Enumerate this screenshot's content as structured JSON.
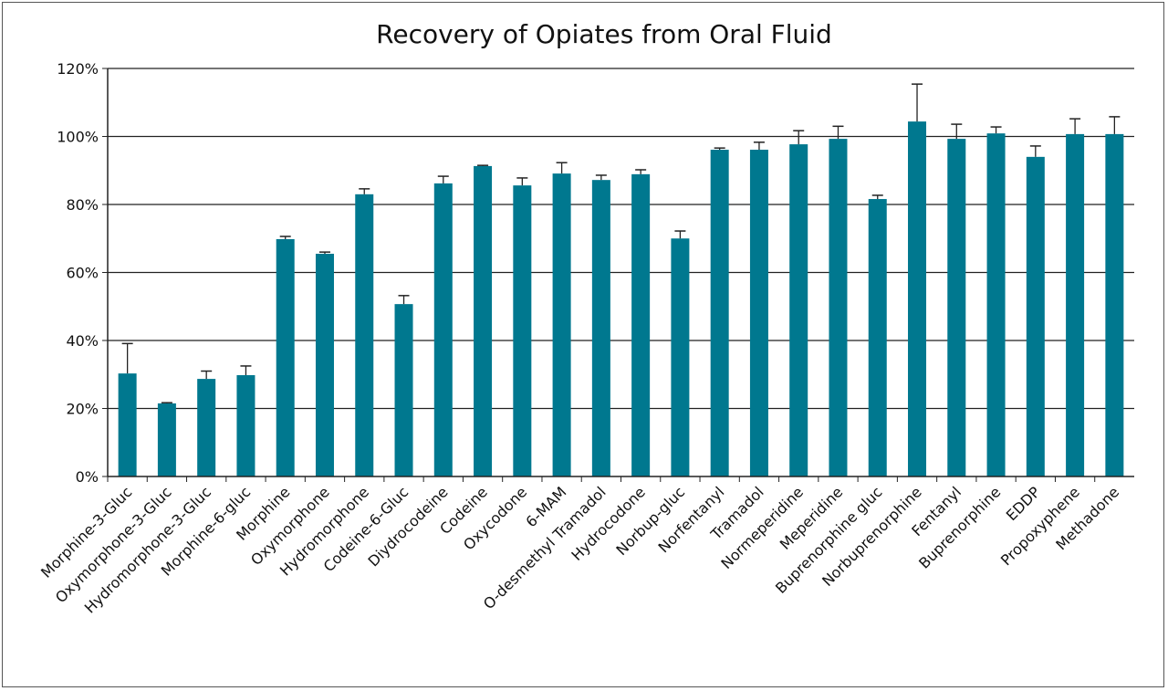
{
  "chart_data": {
    "type": "bar",
    "title": "Recovery of Opiates from Oral Fluid",
    "xlabel": "",
    "ylabel": "",
    "ylim": [
      0,
      120
    ],
    "yticks": [
      0,
      20,
      40,
      60,
      80,
      100,
      120
    ],
    "ytick_labels": [
      "0%",
      "20%",
      "40%",
      "60%",
      "80%",
      "100%",
      "120%"
    ],
    "grid": true,
    "bar_color": "#00788f",
    "categories": [
      "Morphine-3-Gluc",
      "Oxymorphone-3-Gluc",
      "Hydromorphone-3-Gluc",
      "Morphine-6-gluc",
      "Morphine",
      "Oxymorphone",
      "Hydromorphone",
      "Codeine-6-Gluc",
      "Diydrocodeine",
      "Codeine",
      "Oxycodone",
      "6-MAM",
      "O-desmethyl Tramadol",
      "Hydrocodone",
      "Norbup-gluc",
      "Norfentanyl",
      "Tramadol",
      "Normeperidine",
      "Meperidine",
      "Buprenorphine gluc",
      "Norbuprenorphine",
      "Fentanyl",
      "Buprenorphine",
      "EDDP",
      "Propoxyphene",
      "Methadone"
    ],
    "values": [
      30.3,
      21.5,
      28.7,
      29.8,
      69.8,
      65.5,
      83.0,
      50.7,
      86.2,
      91.3,
      85.6,
      89.1,
      87.2,
      88.9,
      70.0,
      96.1,
      96.1,
      97.7,
      99.3,
      81.6,
      104.4,
      99.3,
      100.9,
      94.0,
      100.7,
      100.7
    ],
    "errors": [
      8.8,
      0.2,
      2.3,
      2.7,
      0.8,
      0.5,
      1.6,
      2.5,
      2.1,
      0.2,
      2.2,
      3.2,
      1.4,
      1.3,
      2.2,
      0.5,
      2.2,
      4.0,
      3.7,
      1.1,
      11.0,
      4.3,
      1.9,
      3.2,
      4.5,
      5.1
    ]
  }
}
